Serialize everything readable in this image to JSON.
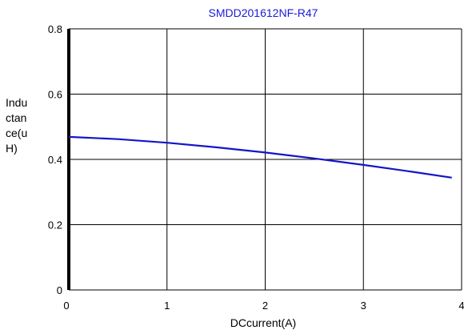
{
  "chart_data": {
    "type": "line",
    "title": "SMDD201612NF-R47",
    "xlabel": "DCcurrent(A)",
    "ylabel": "Inductance(uH)",
    "ylabel_lines": [
      "Indu",
      "ctan",
      "ce(u",
      "H)"
    ],
    "xlim": [
      0,
      4
    ],
    "ylim": [
      0,
      0.8
    ],
    "x_ticks": [
      0,
      1,
      2,
      3,
      4
    ],
    "y_ticks": [
      0,
      0.2,
      0.4,
      0.6,
      0.8
    ],
    "x_tick_labels": [
      "0",
      "1",
      "2",
      "3",
      "4"
    ],
    "y_tick_labels": [
      "0",
      "0.2",
      "0.4",
      "0.6",
      "0.8"
    ],
    "grid": true,
    "series": [
      {
        "color": "#1515c8",
        "x": [
          0,
          0.5,
          1.0,
          1.5,
          2.0,
          2.5,
          3.0,
          3.5,
          3.9
        ],
        "y": [
          0.469,
          0.462,
          0.451,
          0.437,
          0.421,
          0.403,
          0.383,
          0.362,
          0.344
        ]
      }
    ],
    "colors": {
      "title": "#1a1adc",
      "grid": "#000000",
      "axis": "#000000"
    }
  }
}
